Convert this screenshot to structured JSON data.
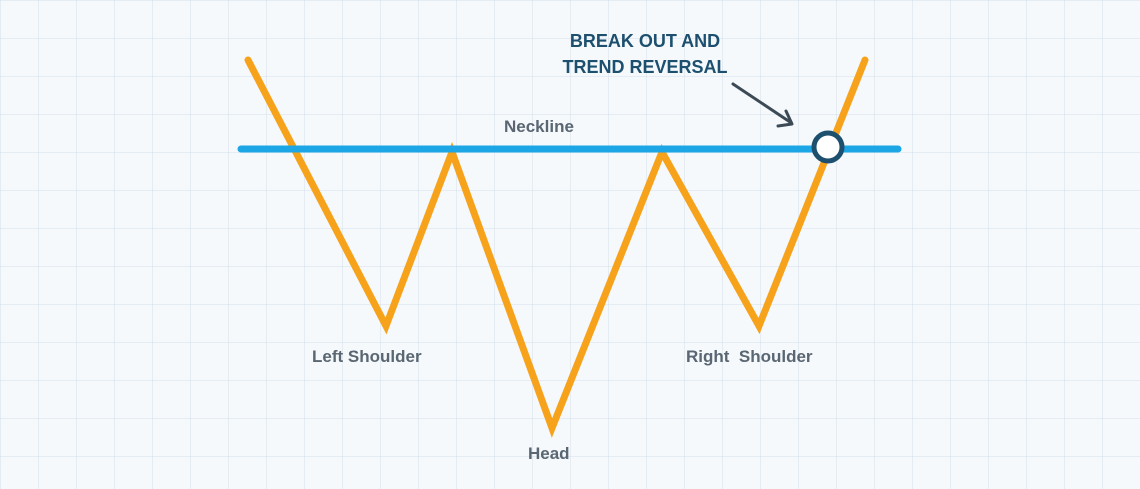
{
  "labels": {
    "neckline": "Neckline",
    "left_shoulder": "Left Shoulder",
    "head": "Head",
    "right_shoulder": "Right  Shoulder",
    "callout_line1": "BREAK OUT AND",
    "callout_line2": "TREND REVERSAL"
  },
  "colors": {
    "price_line": "#f7a21b",
    "neckline": "#1ca6e6",
    "callout_text": "#1d4f6e",
    "breakout_marker": "#1d4f6e",
    "label_text": "#5a6672",
    "arrow": "#3c4a56"
  }
}
